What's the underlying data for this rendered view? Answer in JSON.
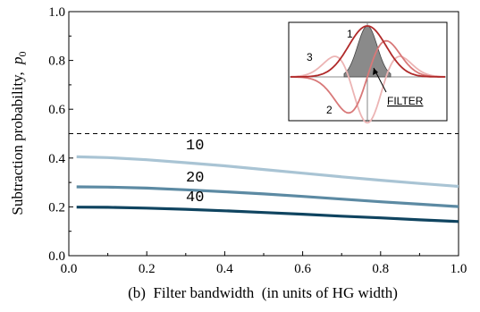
{
  "chart_data": {
    "type": "line",
    "xlabel": "(b)  Filter bandwidth  (in units of HG width)",
    "ylabel": "Subtraction probability,",
    "ylabel_symbol": "p",
    "ylabel_subscript": "0",
    "xlim": [
      0.0,
      1.0
    ],
    "ylim": [
      0.0,
      1.0
    ],
    "x_ticks": [
      "0.0",
      "0.2",
      "0.4",
      "0.6",
      "0.8",
      "1.0"
    ],
    "y_ticks": [
      "0.0",
      "0.2",
      "0.4",
      "0.6",
      "0.8",
      "1.0"
    ],
    "grid": false,
    "reference_line": {
      "y": 0.5,
      "style": "dashed"
    },
    "series": [
      {
        "name": "10",
        "color": "#a9c4d4",
        "x": [
          0.02,
          0.1,
          0.2,
          0.3,
          0.4,
          0.5,
          0.6,
          0.7,
          0.8,
          0.9,
          1.0
        ],
        "y": [
          0.405,
          0.402,
          0.393,
          0.381,
          0.368,
          0.353,
          0.338,
          0.323,
          0.309,
          0.296,
          0.284
        ]
      },
      {
        "name": "20",
        "color": "#5c8aa3",
        "x": [
          0.02,
          0.1,
          0.2,
          0.3,
          0.4,
          0.5,
          0.6,
          0.7,
          0.8,
          0.9,
          1.0
        ],
        "y": [
          0.282,
          0.281,
          0.277,
          0.27,
          0.262,
          0.253,
          0.243,
          0.232,
          0.221,
          0.211,
          0.201
        ]
      },
      {
        "name": "40",
        "color": "#0f4460",
        "x": [
          0.02,
          0.1,
          0.2,
          0.3,
          0.4,
          0.5,
          0.6,
          0.7,
          0.8,
          0.9,
          1.0
        ],
        "y": [
          0.199,
          0.198,
          0.195,
          0.19,
          0.184,
          0.177,
          0.17,
          0.162,
          0.155,
          0.147,
          0.14
        ]
      }
    ],
    "inset": {
      "curve_labels": [
        "1",
        "2",
        "3"
      ],
      "filter_label": "FILTER",
      "colors": {
        "mode1": "#b02a2a",
        "mode2": "#d87878",
        "mode3": "#ecb4b4",
        "filter_fill": "#8a8a8a"
      }
    }
  }
}
